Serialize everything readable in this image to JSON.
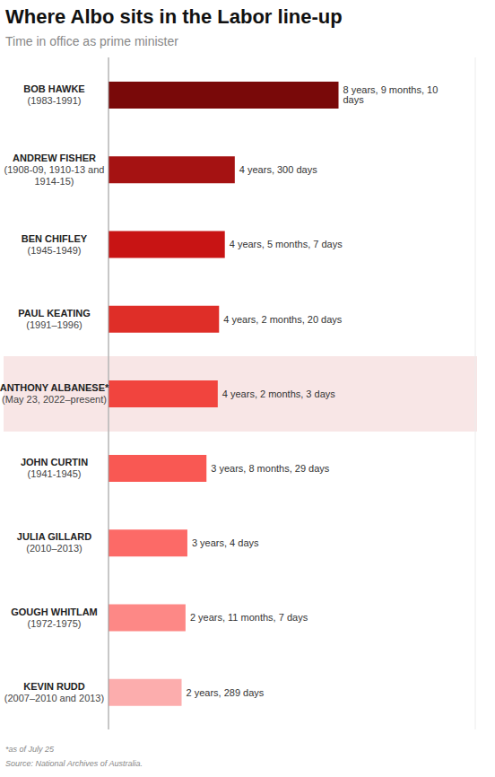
{
  "chart_data": {
    "type": "bar",
    "title": "Where Albo sits in the Labor line-up",
    "subtitle": "Time in office as prime minister",
    "orientation": "horizontal",
    "categories": [
      "BOB HAWKE",
      "ANDREW FISHER",
      "BEN CHIFLEY",
      "PAUL KEATING",
      "ANTHONY ALBANESE*",
      "JOHN CURTIN",
      "JULIA GILLARD",
      "GOUGH WHITLAM",
      "KEVIN RUDD"
    ],
    "terms": [
      "(1983-1991)",
      "(1908-09, 1910-13 and 1914-15)",
      "(1945-1949)",
      "(1991–1996)",
      "(May 23, 2022–present)",
      "(1941-1945)",
      "(2010–2013)",
      "(1972-1975)",
      "(2007–2010 and 2013)"
    ],
    "values": [
      8.78,
      4.82,
      4.44,
      4.22,
      4.17,
      3.74,
      3.01,
      2.94,
      2.79
    ],
    "value_labels": [
      "8 years, 9 months, 10 days",
      "4 years, 300 days",
      "4 years, 5 months, 7 days",
      "4 years, 2 months, 20 days",
      "4 years, 2 months, 3 days",
      "3 years, 8 months, 29 days",
      "3 years, 4 days",
      "2 years, 11 months, 7 days",
      "2 years, 289 days"
    ],
    "colors": [
      "#790909",
      "#a51212",
      "#c81414",
      "#df2e28",
      "#f1443e",
      "#f95853",
      "#fc6a67",
      "#fd8886",
      "#fcadad"
    ],
    "xlim": [
      0,
      14
    ],
    "xticks": [
      0,
      2,
      4,
      6,
      8,
      10,
      12,
      14
    ],
    "grid": true,
    "data_labels": true,
    "tick_labels": false,
    "footnote": "*as of July 25",
    "source": "Source: National Archives of Australia."
  }
}
